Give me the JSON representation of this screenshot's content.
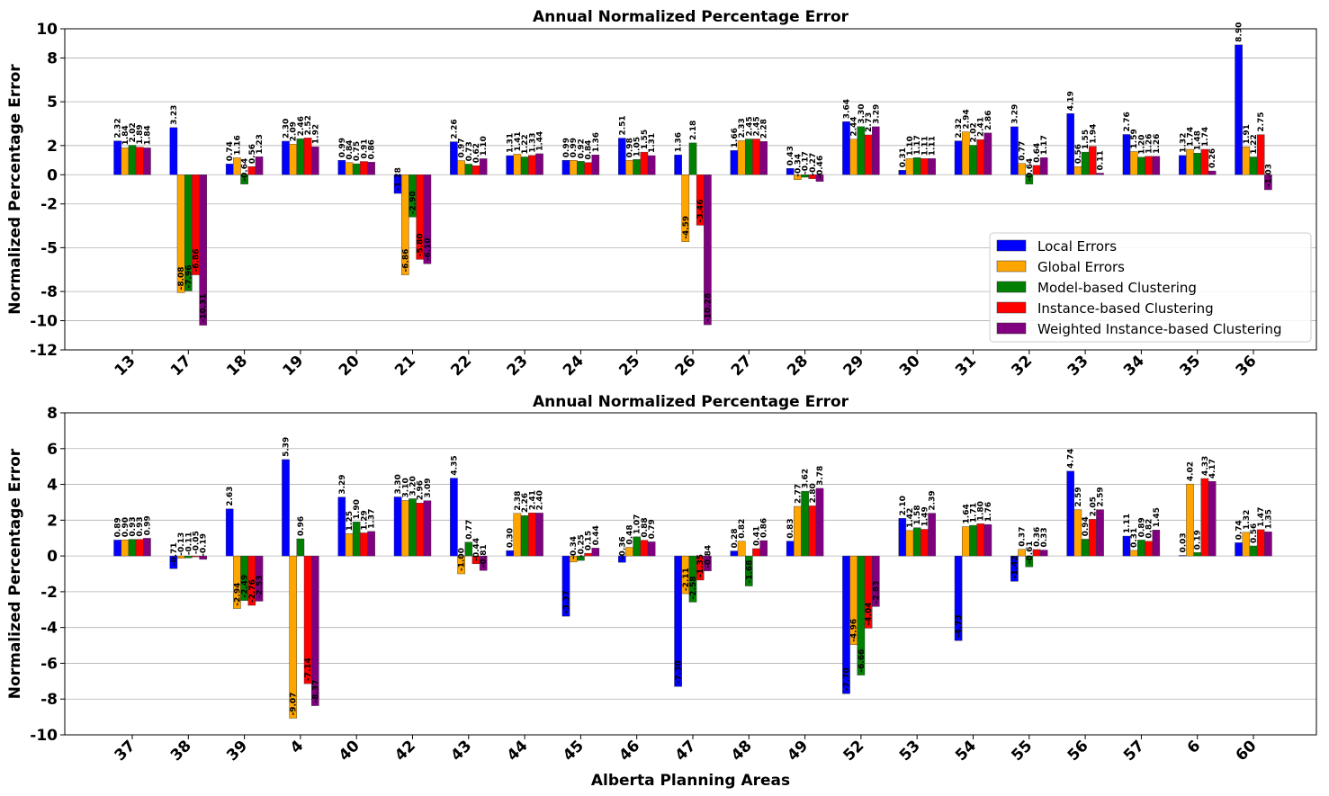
{
  "chart_data": [
    {
      "type": "bar",
      "title": "Annual Normalized Percentage Error",
      "xlabel": "",
      "ylabel": "Normalized Percentage Error",
      "ylim": [
        -12,
        10
      ],
      "yticks": [
        10,
        8,
        5,
        2,
        0,
        -2,
        -5,
        -8,
        -10,
        -12
      ],
      "ytick_labels": [
        "10",
        "8",
        "5",
        "2",
        "0",
        "-2",
        "-5",
        "-8",
        "-10",
        "-12"
      ],
      "grid": true,
      "legend_position": "lower-right",
      "categories": [
        "13",
        "17",
        "18",
        "19",
        "20",
        "21",
        "22",
        "23",
        "24",
        "25",
        "26",
        "27",
        "28",
        "29",
        "30",
        "31",
        "32",
        "33",
        "34",
        "35",
        "36"
      ],
      "series": [
        {
          "name": "Local Errors",
          "color": "#0000ff",
          "values": [
            2.32,
            3.23,
            0.74,
            2.3,
            0.99,
            -1.28,
            2.26,
            1.31,
            0.99,
            2.51,
            1.36,
            1.66,
            0.43,
            3.64,
            0.31,
            2.32,
            3.29,
            4.19,
            2.76,
            1.32,
            8.9
          ]
        },
        {
          "name": "Global Errors",
          "color": "#ffa500",
          "values": [
            1.84,
            -8.08,
            1.16,
            2.09,
            0.84,
            -6.86,
            0.97,
            1.41,
            0.99,
            0.98,
            -4.59,
            2.33,
            -0.34,
            2.44,
            1.1,
            2.94,
            0.77,
            0.56,
            1.59,
            1.74,
            1.91
          ]
        },
        {
          "name": "Model-based Clustering",
          "color": "#008000",
          "values": [
            2.02,
            -7.96,
            -0.64,
            2.46,
            0.75,
            -2.9,
            0.73,
            1.22,
            0.92,
            1.05,
            2.18,
            2.45,
            -0.17,
            3.3,
            1.17,
            2.02,
            -0.64,
            1.55,
            1.2,
            1.48,
            1.22
          ]
        },
        {
          "name": "Instance-based Clustering",
          "color": "#ff0000",
          "values": [
            1.89,
            -6.86,
            0.56,
            2.52,
            0.91,
            -5.8,
            0.62,
            1.33,
            0.84,
            1.55,
            -3.46,
            2.45,
            -0.27,
            2.73,
            1.11,
            2.41,
            0.64,
            1.94,
            1.26,
            1.74,
            2.75
          ]
        },
        {
          "name": "Weighted Instance-based Clustering",
          "color": "#800080",
          "values": [
            1.84,
            -10.31,
            1.23,
            1.92,
            0.86,
            -6.1,
            1.1,
            1.44,
            1.36,
            1.31,
            -10.28,
            2.28,
            -0.46,
            3.29,
            1.11,
            2.86,
            1.17,
            0.11,
            1.26,
            0.26,
            -1.03
          ]
        }
      ]
    },
    {
      "type": "bar",
      "title": "Annual Normalized Percentage Error",
      "xlabel": "Alberta Planning Areas",
      "ylabel": "Normalized Percentage Error",
      "ylim": [
        -10,
        8
      ],
      "yticks": [
        8,
        6,
        4,
        2,
        0,
        -2,
        -4,
        -6,
        -8,
        -10
      ],
      "ytick_labels": [
        "8",
        "6",
        "4",
        "2",
        "0",
        "-2",
        "-4",
        "-6",
        "-8",
        "-10"
      ],
      "grid": true,
      "categories": [
        "37",
        "38",
        "39",
        "4",
        "40",
        "42",
        "43",
        "44",
        "45",
        "46",
        "47",
        "48",
        "49",
        "52",
        "53",
        "54",
        "55",
        "56",
        "57",
        "6",
        "60"
      ],
      "series": [
        {
          "name": "Local Errors",
          "color": "#0000ff",
          "values": [
            0.89,
            -0.71,
            2.63,
            5.39,
            3.29,
            3.3,
            4.35,
            0.3,
            -3.37,
            -0.36,
            -7.3,
            0.28,
            0.83,
            -7.7,
            2.1,
            -4.73,
            -1.42,
            4.74,
            1.11,
            0.03,
            0.74
          ]
        },
        {
          "name": "Global Errors",
          "color": "#ffa500",
          "values": [
            0.9,
            -0.13,
            -2.94,
            -9.07,
            1.25,
            3.1,
            -1.0,
            2.38,
            -0.34,
            0.48,
            -2.11,
            0.82,
            2.77,
            -4.96,
            1.42,
            1.64,
            0.37,
            2.59,
            0.31,
            4.02,
            1.32
          ]
        },
        {
          "name": "Model-based Clustering",
          "color": "#008000",
          "values": [
            0.93,
            -0.11,
            -2.49,
            0.96,
            1.9,
            3.2,
            0.77,
            2.26,
            -0.25,
            1.07,
            -2.58,
            -1.68,
            3.62,
            -6.66,
            1.58,
            1.71,
            -0.61,
            0.94,
            0.89,
            0.19,
            0.56
          ]
        },
        {
          "name": "Instance-based Clustering",
          "color": "#ff0000",
          "values": [
            0.93,
            -0.05,
            -2.76,
            -7.14,
            1.29,
            2.96,
            -0.44,
            2.41,
            0.15,
            0.88,
            -1.35,
            0.41,
            2.8,
            -4.04,
            1.49,
            1.8,
            0.36,
            2.05,
            0.82,
            4.33,
            1.47
          ]
        },
        {
          "name": "Weighted Instance-based Clustering",
          "color": "#800080",
          "values": [
            0.99,
            -0.19,
            -2.53,
            -8.37,
            1.37,
            3.09,
            -0.81,
            2.4,
            0.44,
            0.79,
            -0.84,
            0.86,
            3.78,
            -2.83,
            2.39,
            1.76,
            0.33,
            2.59,
            1.45,
            4.17,
            1.35
          ]
        }
      ]
    }
  ]
}
